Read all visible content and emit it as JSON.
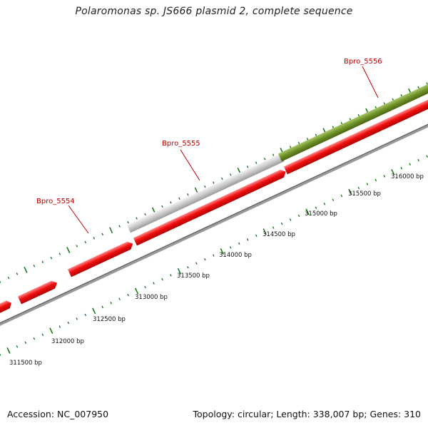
{
  "title": "Polaromonas sp. JS666 plasmid 2, complete sequence",
  "footer": {
    "accession": "Accession: NC_007950",
    "summary": "Topology: circular; Length: 338,007 bp; Genes: 310"
  },
  "colors": {
    "gene_red": "#f01010",
    "gene_gray": "#c4c4c4",
    "gene_olive": "#6e9126",
    "backbone": "#777777",
    "tick_green": "#1e7a1e",
    "label_red": "#c00000"
  },
  "scale_labels": [
    "311500 bp",
    "312000 bp",
    "312500 bp",
    "313000 bp",
    "313500 bp",
    "314000 bp",
    "314500 bp",
    "315000 bp",
    "315500 bp",
    "316000 bp"
  ],
  "gene_labels": [
    {
      "id": "label-bpro-5554",
      "text": "Bpro_5554"
    },
    {
      "id": "label-bpro-5555",
      "text": "Bpro_5555"
    },
    {
      "id": "label-bpro-5556",
      "text": "Bpro_5556"
    }
  ]
}
